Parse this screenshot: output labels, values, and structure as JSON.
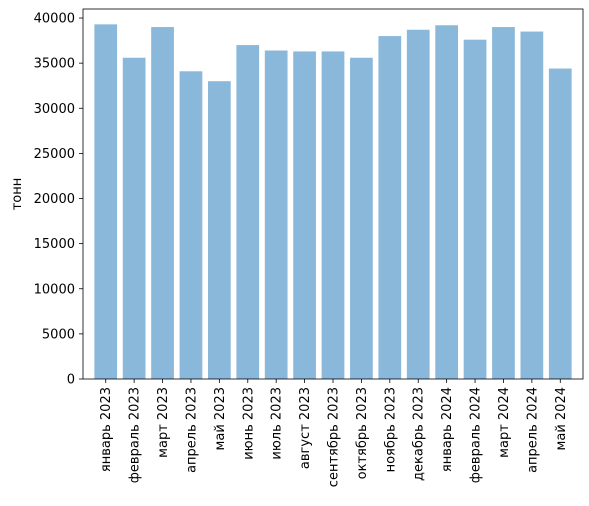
{
  "chart_data": {
    "type": "bar",
    "title": "",
    "xlabel": "",
    "ylabel": "тонн",
    "ylim": [
      0,
      41000
    ],
    "yticks": [
      0,
      5000,
      10000,
      15000,
      20000,
      25000,
      30000,
      35000,
      40000
    ],
    "bar_color": "#8ab8db",
    "grid": false,
    "categories": [
      "январь 2023",
      "февраль 2023",
      "март 2023",
      "апрель 2023",
      "май 2023",
      "июнь 2023",
      "июль 2023",
      "август 2023",
      "сентябрь 2023",
      "октябрь 2023",
      "ноябрь 2023",
      "декабрь 2023",
      "январь 2024",
      "февраль 2024",
      "март 2024",
      "апрель 2024",
      "май 2024"
    ],
    "values": [
      39300,
      35600,
      39000,
      34100,
      33000,
      37000,
      36400,
      36300,
      36300,
      35600,
      38000,
      38700,
      39200,
      37600,
      39000,
      38500,
      34400
    ]
  }
}
